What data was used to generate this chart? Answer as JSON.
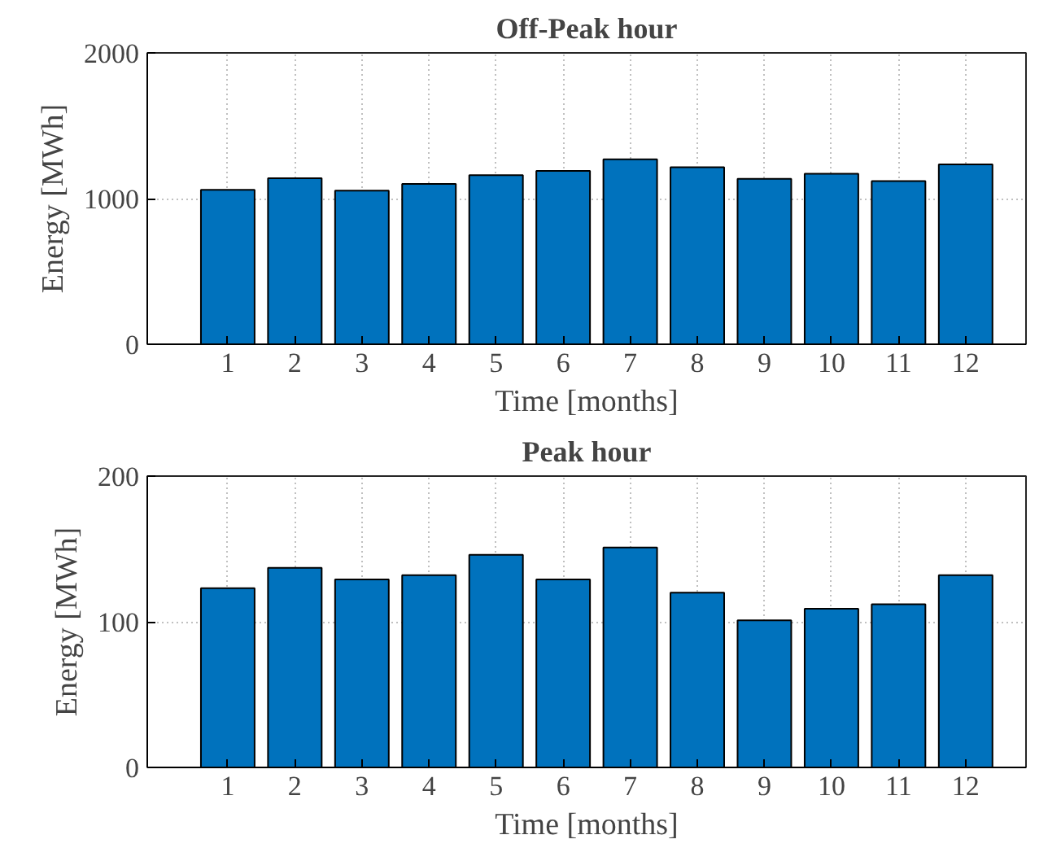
{
  "chart_data": [
    {
      "type": "bar",
      "title": "Off-Peak hour",
      "xlabel": "Time [months]",
      "ylabel": "Energy [MWh]",
      "x": [
        1,
        2,
        3,
        4,
        5,
        6,
        7,
        8,
        9,
        10,
        11,
        12
      ],
      "values": [
        1060,
        1140,
        1055,
        1100,
        1160,
        1190,
        1270,
        1215,
        1135,
        1170,
        1120,
        1235
      ],
      "color": "#0072bd",
      "xlim": [
        -0.2,
        12.9
      ],
      "xticks": [
        1,
        2,
        3,
        4,
        5,
        6,
        7,
        8,
        9,
        10,
        11,
        12
      ],
      "ylim": [
        0,
        2000
      ],
      "yticks": [
        0,
        1000,
        2000
      ],
      "grid": true
    },
    {
      "type": "bar",
      "title": "Peak hour",
      "xlabel": "Time [months]",
      "ylabel": "Energy [MWh]",
      "x": [
        1,
        2,
        3,
        4,
        5,
        6,
        7,
        8,
        9,
        10,
        11,
        12
      ],
      "values": [
        123,
        137,
        129,
        132,
        146,
        129,
        151,
        120,
        101,
        109,
        112,
        132
      ],
      "color": "#0072bd",
      "xlim": [
        -0.2,
        12.9
      ],
      "xticks": [
        1,
        2,
        3,
        4,
        5,
        6,
        7,
        8,
        9,
        10,
        11,
        12
      ],
      "ylim": [
        0,
        200
      ],
      "yticks": [
        0,
        100,
        200
      ],
      "grid": true
    }
  ]
}
